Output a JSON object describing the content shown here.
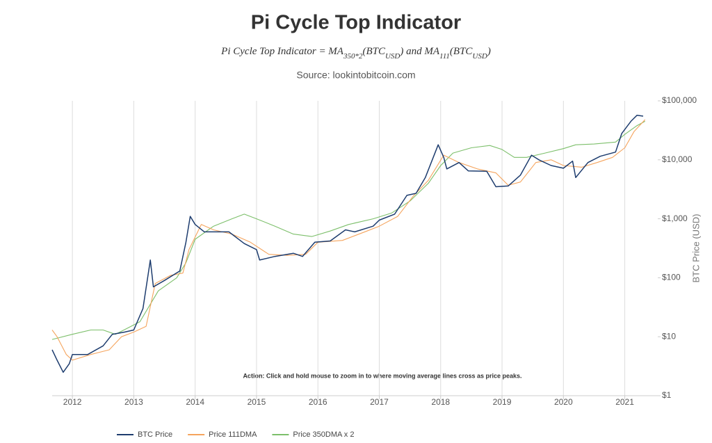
{
  "chart_data": {
    "type": "line",
    "title": "Pi Cycle Top Indicator",
    "subtitle": [
      "Pi Cycle Top Indicator = MA",
      "350*2",
      "(BTC",
      "USD",
      ") and MA",
      "111",
      "(BTC",
      "USD",
      ")"
    ],
    "source": "Source: lookintobitcoin.com",
    "annotation": "Action: Click and hold mouse to zoom in to where moving average lines cross as price peaks.",
    "y_label": "BTC Price (USD)",
    "log_scale": true,
    "grid": true,
    "legend": "bottom",
    "xlim": [
      2011.67,
      2021.56
    ],
    "xticks": [
      2012,
      2013,
      2014,
      2015,
      2016,
      2017,
      2018,
      2019,
      2020,
      2021
    ],
    "ylim": [
      1,
      100000
    ],
    "yticks": [
      {
        "value": 1,
        "label": "$1"
      },
      {
        "value": 10,
        "label": "$10"
      },
      {
        "value": 100,
        "label": "$100"
      },
      {
        "value": 1000,
        "label": "$1,000"
      },
      {
        "value": 10000,
        "label": "$10,000"
      },
      {
        "value": 100000,
        "label": "$100,000"
      }
    ],
    "series": [
      {
        "name": "BTC Price",
        "color": "#1d3c6e",
        "x": [
          2011.67,
          2011.75,
          2011.85,
          2011.95,
          2012.0,
          2012.25,
          2012.5,
          2012.65,
          2012.85,
          2013.0,
          2013.15,
          2013.27,
          2013.32,
          2013.5,
          2013.75,
          2013.85,
          2013.92,
          2014.0,
          2014.15,
          2014.4,
          2014.55,
          2014.8,
          2015.0,
          2015.05,
          2015.3,
          2015.6,
          2015.75,
          2015.95,
          2016.2,
          2016.45,
          2016.6,
          2016.9,
          2017.0,
          2017.25,
          2017.45,
          2017.6,
          2017.75,
          2017.96,
          2018.05,
          2018.1,
          2018.3,
          2018.45,
          2018.75,
          2018.9,
          2019.1,
          2019.3,
          2019.48,
          2019.6,
          2019.8,
          2020.0,
          2020.15,
          2020.2,
          2020.4,
          2020.6,
          2020.85,
          2020.95,
          2021.1,
          2021.2,
          2021.3
        ],
        "values": [
          6,
          4,
          2.5,
          3.5,
          5,
          5,
          7,
          11,
          12,
          13,
          30,
          200,
          70,
          90,
          130,
          400,
          1100,
          800,
          600,
          600,
          600,
          380,
          300,
          200,
          230,
          260,
          230,
          400,
          420,
          650,
          600,
          750,
          950,
          1200,
          2500,
          2700,
          5000,
          18000,
          11000,
          7000,
          9000,
          6500,
          6400,
          3500,
          3600,
          5500,
          12000,
          10000,
          8000,
          7200,
          9500,
          5000,
          9000,
          11500,
          13500,
          28000,
          45000,
          57000,
          55000
        ]
      },
      {
        "name": "Price 111DMA",
        "color": "#f5a45d",
        "x": [
          2011.67,
          2011.75,
          2011.9,
          2012.0,
          2012.3,
          2012.6,
          2012.8,
          2013.0,
          2013.2,
          2013.35,
          2013.6,
          2013.8,
          2013.9,
          2014.1,
          2014.3,
          2014.6,
          2014.9,
          2015.2,
          2015.5,
          2015.8,
          2016.0,
          2016.4,
          2016.8,
          2017.0,
          2017.3,
          2017.55,
          2017.8,
          2018.05,
          2018.3,
          2018.6,
          2018.9,
          2019.1,
          2019.3,
          2019.55,
          2019.8,
          2020.0,
          2020.3,
          2020.55,
          2020.8,
          2021.0,
          2021.15,
          2021.33
        ],
        "values": [
          13,
          10,
          5,
          4,
          5,
          6,
          10,
          12,
          15,
          80,
          110,
          120,
          300,
          800,
          650,
          550,
          400,
          250,
          240,
          250,
          400,
          430,
          620,
          750,
          1100,
          2400,
          4500,
          12000,
          9000,
          7000,
          6000,
          3700,
          4200,
          9000,
          10000,
          8000,
          7500,
          9000,
          11000,
          16000,
          30000,
          48000
        ]
      },
      {
        "name": "Price 350DMA x 2",
        "color": "#7cbf6a",
        "x": [
          2011.67,
          2012.0,
          2012.3,
          2012.5,
          2012.7,
          2012.9,
          2013.1,
          2013.4,
          2013.7,
          2013.85,
          2014.0,
          2014.3,
          2014.6,
          2014.8,
          2015.0,
          2015.3,
          2015.6,
          2015.9,
          2016.2,
          2016.5,
          2016.9,
          2017.2,
          2017.5,
          2017.8,
          2018.0,
          2018.2,
          2018.5,
          2018.8,
          2019.0,
          2019.2,
          2019.4,
          2019.7,
          2020.0,
          2020.2,
          2020.5,
          2020.85,
          2021.0,
          2021.2,
          2021.33
        ],
        "values": [
          9,
          11,
          13,
          13,
          11,
          14,
          18,
          60,
          100,
          180,
          450,
          750,
          1000,
          1200,
          1000,
          750,
          550,
          500,
          620,
          800,
          1000,
          1250,
          2000,
          4000,
          8000,
          13000,
          16000,
          17500,
          15000,
          11000,
          11000,
          13000,
          15500,
          18000,
          18500,
          20000,
          27000,
          38000,
          45000
        ]
      }
    ]
  }
}
